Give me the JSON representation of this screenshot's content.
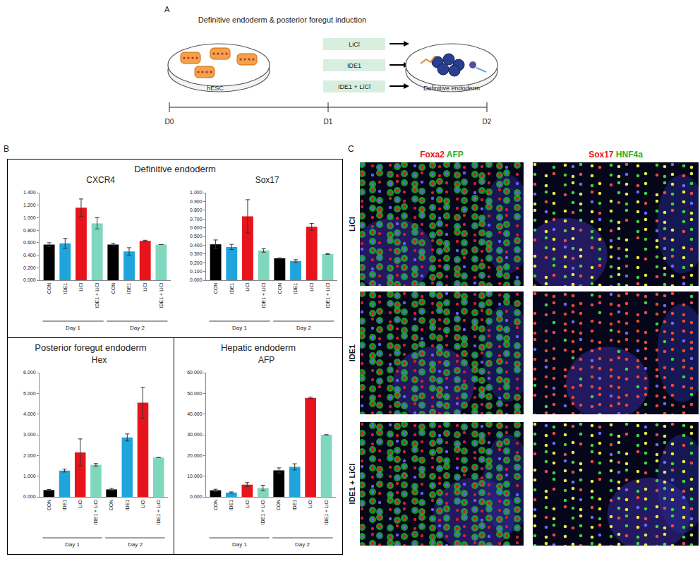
{
  "panel_a": {
    "label": "A",
    "title": "Definitive endoderm & posterior foregut induction",
    "start": "hESC",
    "end": "Definitive endoderm",
    "treatments": [
      "LiCl",
      "IDE1",
      "IDE1 + LiCl"
    ],
    "timeline": [
      "D0",
      "D1",
      "D2"
    ]
  },
  "panel_b": {
    "label": "B",
    "boxes": [
      "Definitive endoderm",
      "Posterior foregut endoderm",
      "Hepatic endoderm"
    ]
  },
  "chart_data": [
    {
      "type": "bar",
      "title": "CXCR4",
      "categories": [
        "CON",
        "IDE1",
        "LiCl",
        "IDE1 + LiCl",
        "CON",
        "IDE1",
        "LiCl",
        "IDE1 + LiCl"
      ],
      "x_groups": [
        "Day 1",
        "Day 2"
      ],
      "values": [
        0.57,
        0.59,
        1.16,
        0.91,
        0.57,
        0.46,
        0.63,
        0.57
      ],
      "errors": [
        0.03,
        0.08,
        0.14,
        0.09,
        0.02,
        0.06,
        0.01,
        0
      ],
      "colors": [
        "#000000",
        "#1fa5dc",
        "#e8141c",
        "#7fd8be",
        "#000000",
        "#1fa5dc",
        "#e8141c",
        "#7fd8be"
      ],
      "ylim": [
        0,
        1.4
      ],
      "yticks": [
        {
          "value": 0,
          "label": "0.000"
        },
        {
          "value": 0.2,
          "label": "0.200"
        },
        {
          "value": 0.4,
          "label": "0.400"
        },
        {
          "value": 0.6,
          "label": "0.600"
        },
        {
          "value": 0.8,
          "label": "0.800"
        },
        {
          "value": 1.0,
          "label": "1.000"
        },
        {
          "value": 1.2,
          "label": "1.200"
        },
        {
          "value": 1.4,
          "label": "1.400"
        }
      ],
      "grid": false
    },
    {
      "type": "bar",
      "title": "Sox17",
      "categories": [
        "CON",
        "IDE1",
        "LiCl",
        "IDE1 + LiCl",
        "CON",
        "IDE1",
        "LiCl",
        "IDE1 + LiCl"
      ],
      "x_groups": [
        "Day 1",
        "Day 2"
      ],
      "values": [
        0.41,
        0.38,
        0.73,
        0.34,
        0.25,
        0.22,
        0.61,
        0.3
      ],
      "errors": [
        0.05,
        0.03,
        0.19,
        0.02,
        0.005,
        0.015,
        0.04,
        0.005
      ],
      "colors": [
        "#000000",
        "#1fa5dc",
        "#e8141c",
        "#7fd8be",
        "#000000",
        "#1fa5dc",
        "#e8141c",
        "#7fd8be"
      ],
      "ylim": [
        0,
        1.0
      ],
      "yticks": [
        {
          "value": 0,
          "label": "0.000"
        },
        {
          "value": 0.1,
          "label": "0.100"
        },
        {
          "value": 0.2,
          "label": "0.200"
        },
        {
          "value": 0.3,
          "label": "0.300"
        },
        {
          "value": 0.4,
          "label": "0.400"
        },
        {
          "value": 0.5,
          "label": "0.500"
        },
        {
          "value": 0.6,
          "label": "0.600"
        },
        {
          "value": 0.7,
          "label": "0.700"
        },
        {
          "value": 0.8,
          "label": "0.800"
        },
        {
          "value": 0.9,
          "label": "0.900"
        },
        {
          "value": 1.0,
          "label": "1.000"
        }
      ],
      "grid": false
    },
    {
      "type": "bar",
      "title": "Hex",
      "categories": [
        "CON",
        "IDE1",
        "LiCl",
        "IDE1 + LiCl",
        "CON",
        "IDE1",
        "LiCl",
        "IDE1 + LiCl"
      ],
      "x_groups": [
        "Day 1",
        "Day 2"
      ],
      "values": [
        0.33,
        1.27,
        2.15,
        1.55,
        0.36,
        2.87,
        4.55,
        1.9
      ],
      "errors": [
        0.03,
        0.07,
        0.65,
        0.06,
        0.05,
        0.17,
        0.75,
        0
      ],
      "colors": [
        "#000000",
        "#1fa5dc",
        "#e8141c",
        "#7fd8be",
        "#000000",
        "#1fa5dc",
        "#e8141c",
        "#7fd8be"
      ],
      "ylim": [
        0,
        6
      ],
      "yticks": [
        {
          "value": 0,
          "label": "0.000"
        },
        {
          "value": 1,
          "label": "1.000"
        },
        {
          "value": 2,
          "label": "2.000"
        },
        {
          "value": 3,
          "label": "3.000"
        },
        {
          "value": 4,
          "label": "4.000"
        },
        {
          "value": 5,
          "label": "5.000"
        },
        {
          "value": 6,
          "label": "6.000"
        }
      ],
      "grid": false
    },
    {
      "type": "bar",
      "title": "AFP",
      "categories": [
        "CON",
        "IDE1",
        "LiCl",
        "IDE1 + LiCl",
        "CON",
        "IDE1",
        "LiCl",
        "IDE1 + LiCl"
      ],
      "x_groups": [
        "Day 1",
        "Day 2"
      ],
      "values": [
        3.2,
        2.1,
        5.9,
        4.3,
        12.8,
        14.5,
        47.8,
        30
      ],
      "errors": [
        0.5,
        0.3,
        1.0,
        1.3,
        1.2,
        1.5,
        0.4,
        0
      ],
      "colors": [
        "#000000",
        "#1fa5dc",
        "#e8141c",
        "#7fd8be",
        "#000000",
        "#1fa5dc",
        "#e8141c",
        "#7fd8be"
      ],
      "ylim": [
        0,
        60
      ],
      "yticks": [
        {
          "value": 0,
          "label": "0.000"
        },
        {
          "value": 10,
          "label": "10.000"
        },
        {
          "value": 20,
          "label": "20.000"
        },
        {
          "value": 30,
          "label": "30.000"
        },
        {
          "value": 40,
          "label": "40.000"
        },
        {
          "value": 50,
          "label": "50.000"
        },
        {
          "value": 60,
          "label": "60.000"
        }
      ],
      "grid": false
    }
  ],
  "panel_c": {
    "label": "C",
    "columns": [
      [
        {
          "text": "Foxa2",
          "color": "#e8141c"
        },
        {
          "text": "AFP",
          "color": "#22b02a"
        }
      ],
      [
        {
          "text": "Sox17",
          "color": "#e8141c"
        },
        {
          "text": "HNF4a",
          "color": "#22b02a"
        }
      ]
    ],
    "rows": [
      "LiCl",
      "IDE1",
      "IDE1 + LiCl"
    ]
  }
}
